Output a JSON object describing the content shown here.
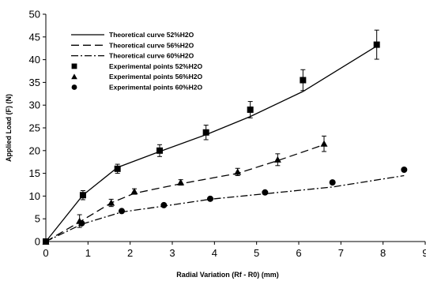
{
  "chart_data": {
    "type": "line",
    "xlabel": "Radial Variation (Rf - R0) (mm)",
    "ylabel": "Applied Load (F) (N)",
    "xlim": [
      0,
      9
    ],
    "ylim": [
      0,
      50
    ],
    "xticks": [
      0,
      1,
      2,
      3,
      4,
      5,
      6,
      7,
      8,
      9
    ],
    "yticks": [
      0,
      5,
      10,
      15,
      20,
      25,
      30,
      35,
      40,
      45,
      50
    ],
    "grid": false,
    "legend_position": "top-left",
    "series": [
      {
        "name": "Theoretical curve 52%H2O",
        "kind": "line",
        "dash": "solid",
        "x": [
          0,
          0.88,
          1.7,
          2.7,
          3.8,
          4.85,
          6.1,
          7.85
        ],
        "y": [
          0,
          10.2,
          16.3,
          19.8,
          23.5,
          27.5,
          33.0,
          43.0
        ]
      },
      {
        "name": "Theoretical curve 56%H2O",
        "kind": "line",
        "dash": "dash",
        "x": [
          0,
          0.8,
          1.55,
          2.1,
          3.2,
          4.55,
          5.5,
          6.6
        ],
        "y": [
          0,
          4.3,
          8.5,
          10.6,
          12.7,
          15.0,
          17.8,
          21.3
        ]
      },
      {
        "name": "Theoretical curve 60%H2O",
        "kind": "line",
        "dash": "dashdot",
        "x": [
          0,
          0.85,
          1.8,
          2.8,
          3.9,
          5.2,
          6.8,
          8.5
        ],
        "y": [
          0,
          3.8,
          6.5,
          7.8,
          9.3,
          10.5,
          12.0,
          14.5
        ]
      },
      {
        "name": "Experimental points 52%H2O",
        "kind": "points",
        "marker": "square",
        "x": [
          0,
          0.88,
          1.7,
          2.7,
          3.8,
          4.85,
          6.1,
          7.85
        ],
        "y": [
          0,
          10.2,
          16.0,
          20.0,
          24.0,
          29.0,
          35.5,
          43.3
        ],
        "error": [
          0,
          1.0,
          1.0,
          1.3,
          1.6,
          1.8,
          2.3,
          3.2
        ]
      },
      {
        "name": "Experimental points 56%H2O",
        "kind": "points",
        "marker": "triangle",
        "x": [
          0,
          0.8,
          1.55,
          2.1,
          3.2,
          4.55,
          5.5,
          6.6
        ],
        "y": [
          0,
          4.5,
          8.5,
          11.0,
          13.0,
          15.3,
          18.0,
          21.5
        ],
        "error": [
          0,
          1.4,
          0.8,
          0.6,
          0.6,
          0.8,
          1.3,
          1.7
        ]
      },
      {
        "name": "Experimental points 60%H2O",
        "kind": "points",
        "marker": "circle",
        "x": [
          0,
          0.85,
          1.8,
          2.8,
          3.9,
          5.2,
          6.8,
          8.5
        ],
        "y": [
          0,
          4.0,
          6.7,
          8.0,
          9.4,
          10.8,
          13.0,
          15.8
        ],
        "error": [
          0,
          0,
          0,
          0,
          0,
          0,
          0,
          0
        ]
      }
    ],
    "colors": {
      "ink": "#000000",
      "background": "#ffffff"
    }
  }
}
